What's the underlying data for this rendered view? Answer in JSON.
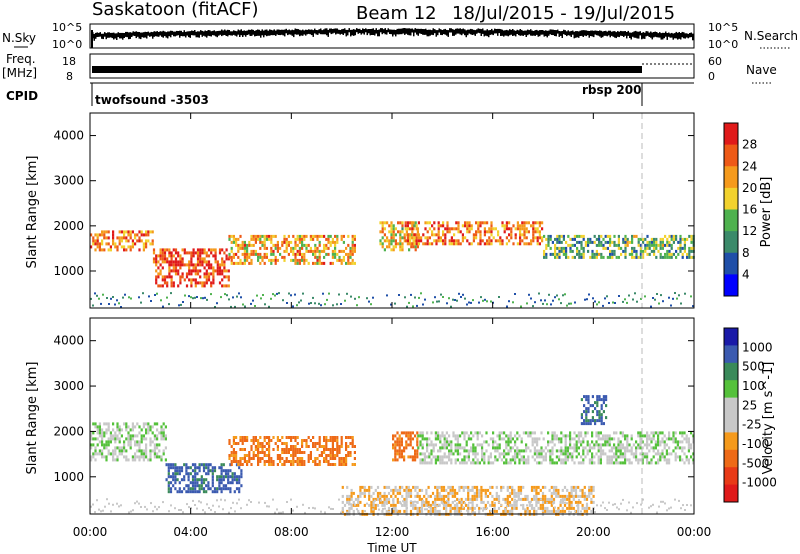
{
  "header": {
    "station": "Saskatoon (fitACF)",
    "beam": "Beam 12",
    "date_range": "18/Jul/2015 - 19/Jul/2015"
  },
  "strips": {
    "nsky_label": "N.Sky",
    "nsky_ticks": [
      "10^5",
      "10^0"
    ],
    "nsearch_label": "N.Search",
    "nsearch_ticks": [
      "10^5",
      "10^0"
    ],
    "freq_label": "Freq.",
    "freq_unit": "[MHz]",
    "freq_ticks": [
      "18",
      "8"
    ],
    "nave_label": "Nave",
    "nave_ticks": [
      "60",
      "0"
    ],
    "cpid_label": "CPID",
    "cpid_program_1": "twofsound -3503",
    "cpid_program_2": "rbsp 200"
  },
  "colors": {
    "power_scale": [
      "#0000ff",
      "#1f4fa8",
      "#3b8a6a",
      "#4fb24f",
      "#f2d22e",
      "#f59a1c",
      "#ee5a17",
      "#e01a1a"
    ],
    "velocity_scale": [
      "#1a1aa8",
      "#3b5ab0",
      "#3a8a5a",
      "#55c13b",
      "#c8c8c8",
      "#c8c8c8",
      "#f59a1c",
      "#ee6a17",
      "#e83a17",
      "#e01a1a"
    ]
  },
  "chart_data": [
    {
      "type": "heatmap",
      "title": "",
      "ylabel": "Slant Range [km]",
      "xlabel": "",
      "y_ticks": [
        "1000",
        "2000",
        "3000",
        "4000"
      ],
      "x_ticks": [
        "00:00",
        "04:00",
        "08:00",
        "12:00",
        "16:00",
        "20:00",
        "00:00"
      ],
      "xlim_hours": [
        0,
        24
      ],
      "ylim_km": [
        180,
        4500
      ],
      "colorbar": {
        "label": "Power [dB]",
        "ticks": [
          "28",
          "24",
          "20",
          "16",
          "12",
          "8",
          "4"
        ],
        "range": [
          0,
          30
        ]
      },
      "echo_regions": [
        {
          "from_h": 0,
          "to_h": 2.5,
          "range_km": [
            1500,
            1900
          ],
          "value_db": 22
        },
        {
          "from_h": 2.5,
          "to_h": 5.5,
          "range_km": [
            700,
            1500
          ],
          "value_db": 26
        },
        {
          "from_h": 5.5,
          "to_h": 10.5,
          "range_km": [
            1200,
            1800
          ],
          "value_db": 20
        },
        {
          "from_h": 11.5,
          "to_h": 13,
          "range_km": [
            1500,
            2100
          ],
          "value_db": 18
        },
        {
          "from_h": 12.5,
          "to_h": 18,
          "range_km": [
            1600,
            2100
          ],
          "value_db": 22
        },
        {
          "from_h": 18,
          "to_h": 24,
          "range_km": [
            1300,
            1800
          ],
          "value_db": 12
        }
      ]
    },
    {
      "type": "heatmap",
      "title": "",
      "ylabel": "Slant Range [km]",
      "xlabel": "Time UT",
      "y_ticks": [
        "1000",
        "2000",
        "3000",
        "4000"
      ],
      "x_ticks": [
        "00:00",
        "04:00",
        "08:00",
        "12:00",
        "16:00",
        "20:00",
        "00:00"
      ],
      "xlim_hours": [
        0,
        24
      ],
      "ylim_km": [
        180,
        4500
      ],
      "colorbar": {
        "label": "Velocity [m s^-1]",
        "ticks": [
          "1000",
          "500",
          "100",
          "25",
          "-25",
          "-100",
          "-500",
          "-1000"
        ]
      },
      "echo_regions": [
        {
          "from_h": 0,
          "to_h": 3,
          "range_km": [
            1400,
            2200
          ],
          "value_ms": 0
        },
        {
          "from_h": 3,
          "to_h": 6,
          "range_km": [
            700,
            1300
          ],
          "value_ms": 300
        },
        {
          "from_h": 5.5,
          "to_h": 10.5,
          "range_km": [
            1300,
            1900
          ],
          "value_ms": -300
        },
        {
          "from_h": 12,
          "to_h": 13,
          "range_km": [
            1400,
            2000
          ],
          "value_ms": -300
        },
        {
          "from_h": 13,
          "to_h": 24,
          "range_km": [
            1300,
            2000
          ],
          "value_ms": 0
        },
        {
          "from_h": 19.5,
          "to_h": 20.5,
          "range_km": [
            2200,
            2800
          ],
          "value_ms": 300
        },
        {
          "from_h": 10,
          "to_h": 20,
          "range_km": [
            200,
            800
          ],
          "value_ms": -100
        }
      ]
    }
  ]
}
